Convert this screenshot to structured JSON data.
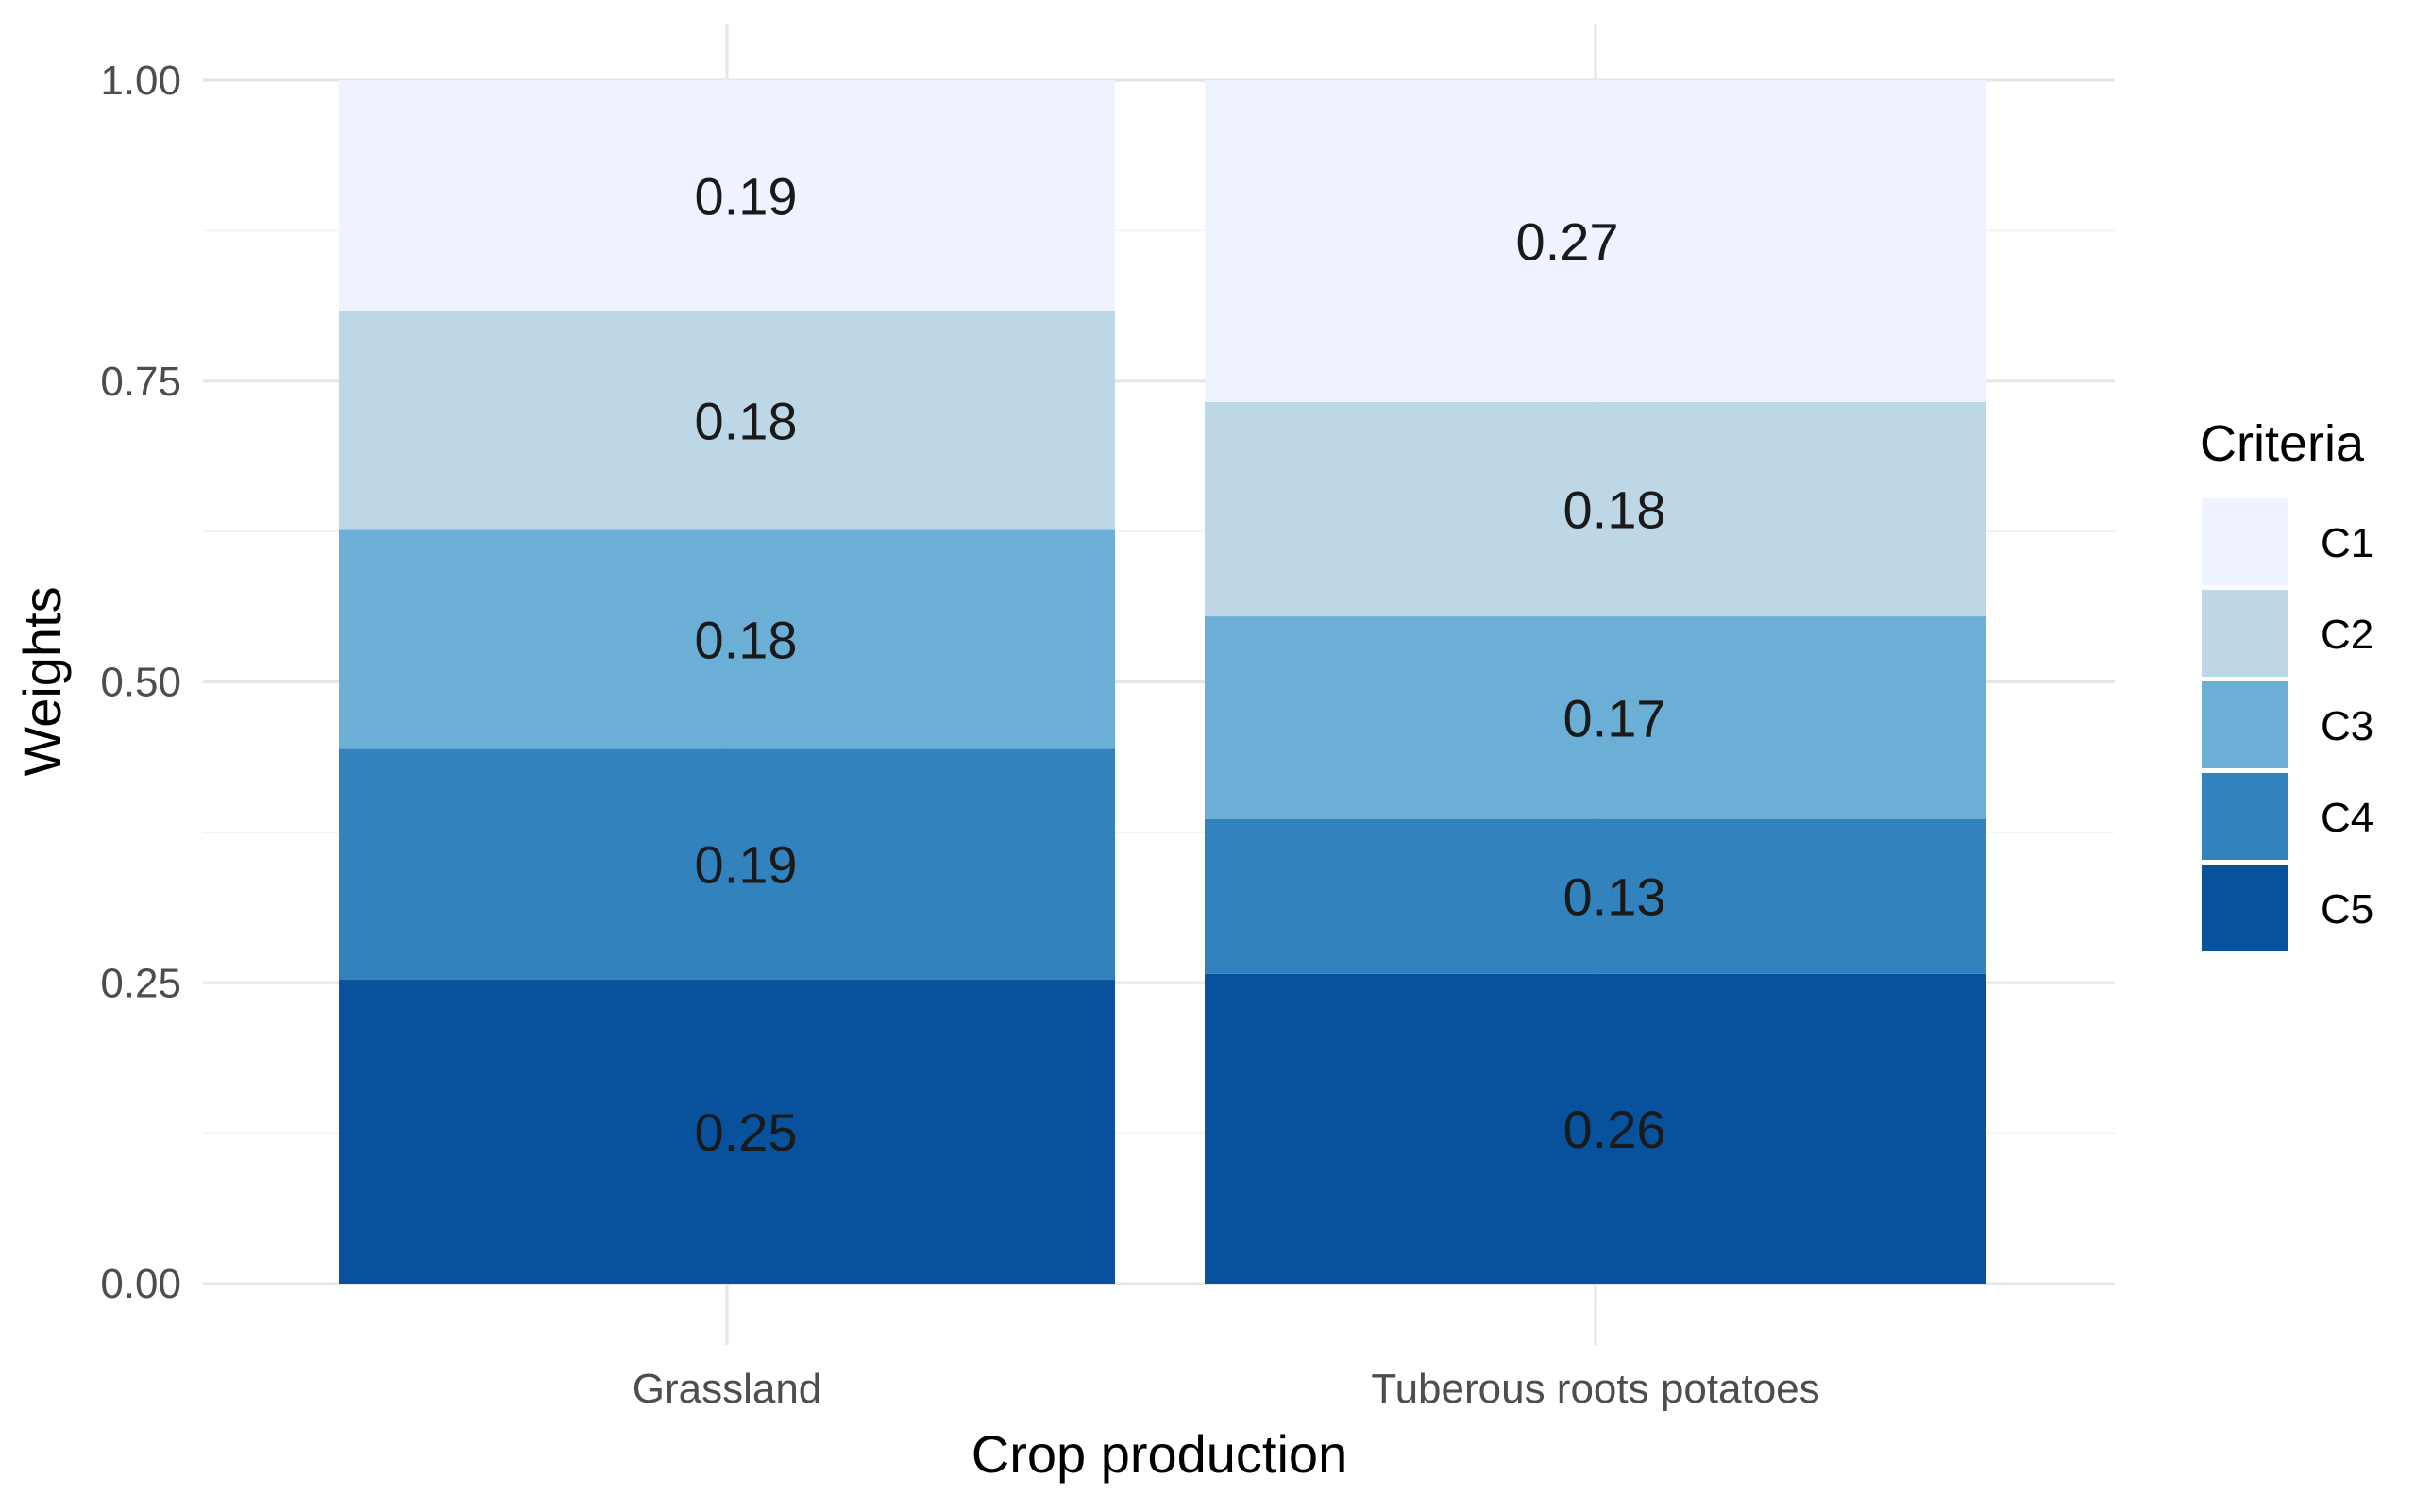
{
  "chart_data": {
    "type": "bar",
    "stacked": true,
    "categories": [
      "Grassland",
      "Tuberous roots potatoes"
    ],
    "series": [
      {
        "name": "C1",
        "values": [
          0.19,
          0.27
        ],
        "labels": [
          "0.19",
          "0.27"
        ],
        "color": "#eff3ff"
      },
      {
        "name": "C2",
        "values": [
          0.18,
          0.18
        ],
        "labels": [
          "0.18",
          "0.18"
        ],
        "color": "#bdd7e7"
      },
      {
        "name": "C3",
        "values": [
          0.18,
          0.17
        ],
        "labels": [
          "0.18",
          "0.17"
        ],
        "color": "#6baed6"
      },
      {
        "name": "C4",
        "values": [
          0.19,
          0.13
        ],
        "labels": [
          "0.19",
          "0.13"
        ],
        "color": "#3182bd"
      },
      {
        "name": "C5",
        "values": [
          0.25,
          0.26
        ],
        "labels": [
          "0.25",
          "0.26"
        ],
        "color": "#08519c"
      }
    ],
    "stack_order_bottom_to_top": [
      "C5",
      "C4",
      "C3",
      "C2",
      "C1"
    ],
    "title": "",
    "xlabel": "Crop production",
    "ylabel": "Weights",
    "ylim": [
      0,
      1
    ],
    "yticks": [
      0,
      0.25,
      0.5,
      0.75,
      1.0
    ],
    "ytick_labels": [
      "0.00",
      "0.25",
      "0.50",
      "0.75",
      "1.00"
    ],
    "grid": true,
    "legend": {
      "title": "Criteria",
      "position": "right",
      "entries": [
        "C1",
        "C2",
        "C3",
        "C4",
        "C5"
      ]
    }
  }
}
